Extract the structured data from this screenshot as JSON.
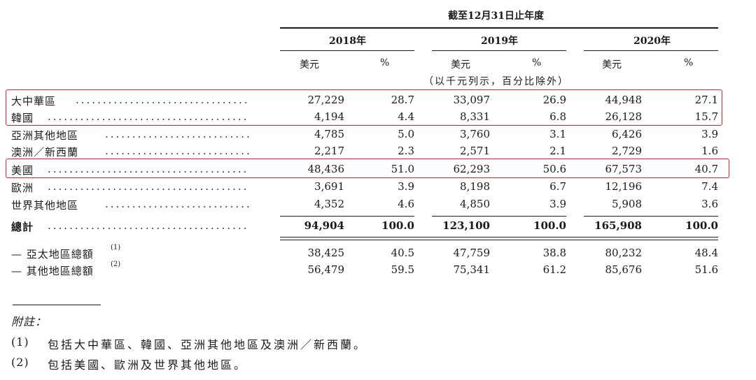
{
  "header": {
    "period": "截至12月31日止年度",
    "years": [
      "2018年",
      "2019年",
      "2020年"
    ],
    "unit_usd": "美元",
    "unit_pct": "%",
    "unit_note": "（以千元列示，百分比除外）"
  },
  "rows": [
    {
      "label": "大中華區",
      "v": [
        "27,229",
        "28.7",
        "33,097",
        "26.9",
        "44,948",
        "27.1"
      ]
    },
    {
      "label": "韓國",
      "v": [
        "4,194",
        "4.4",
        "8,331",
        "6.8",
        "26,128",
        "15.7"
      ]
    },
    {
      "label": "亞洲其他地區",
      "v": [
        "4,785",
        "5.0",
        "3,760",
        "3.1",
        "6,426",
        "3.9"
      ]
    },
    {
      "label": "澳洲／新西蘭",
      "v": [
        "2,217",
        "2.3",
        "2,571",
        "2.1",
        "2,729",
        "1.6"
      ]
    },
    {
      "label": "美國",
      "v": [
        "48,436",
        "51.0",
        "62,293",
        "50.6",
        "67,573",
        "40.7"
      ]
    },
    {
      "label": "歐洲",
      "v": [
        "3,691",
        "3.9",
        "8,198",
        "6.7",
        "12,196",
        "7.4"
      ]
    },
    {
      "label": "世界其他地區",
      "v": [
        "4,352",
        "4.6",
        "4,850",
        "3.9",
        "5,908",
        "3.6"
      ]
    }
  ],
  "total": {
    "label": "總計",
    "v": [
      "94,904",
      "100.0",
      "123,100",
      "100.0",
      "165,908",
      "100.0"
    ]
  },
  "subtotals": [
    {
      "label": "— 亞太地區總額",
      "sup": "(1)",
      "v": [
        "38,425",
        "40.5",
        "47,759",
        "38.8",
        "80,232",
        "48.4"
      ]
    },
    {
      "label": "— 其他地區總額",
      "sup": "(2)",
      "v": [
        "56,479",
        "59.5",
        "75,341",
        "61.2",
        "85,676",
        "51.6"
      ]
    }
  ],
  "notes": {
    "title": "附註：",
    "items": [
      {
        "num": "(1)",
        "text": "包括大中華區、韓國、亞洲其他地區及澳洲／新西蘭。"
      },
      {
        "num": "(2)",
        "text": "包括美國、歐洲及世界其他地區。"
      }
    ]
  },
  "highlight_color": "#d9262c"
}
